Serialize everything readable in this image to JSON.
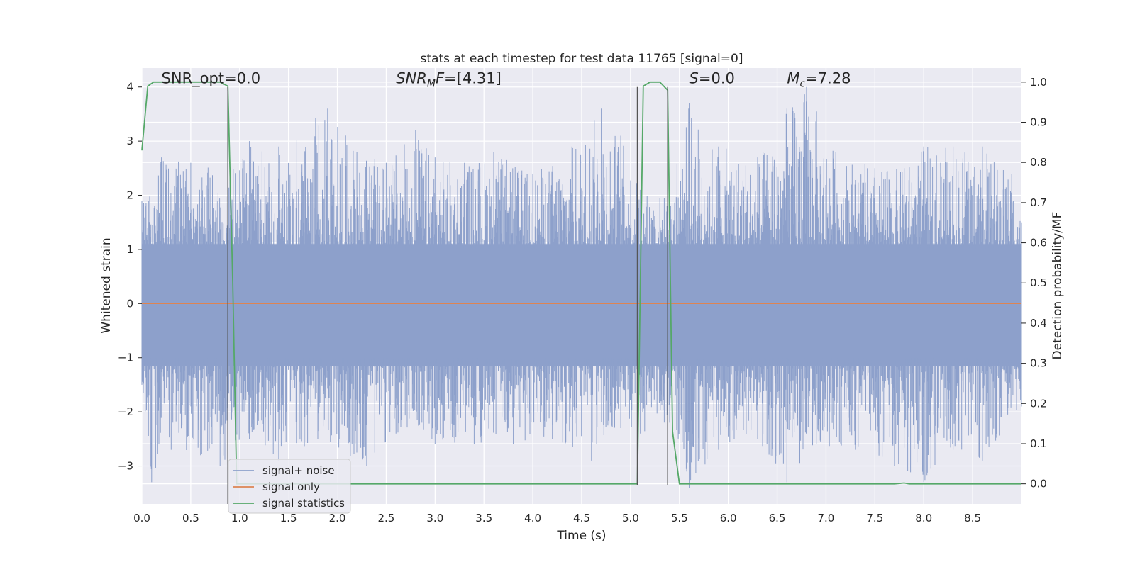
{
  "chart_data": {
    "type": "line",
    "title": "stats at each timestep for test data 11765 [signal=0]",
    "xlabel": "Time (s)",
    "ylabel_left": "Whitened strain",
    "ylabel_right": "Detection probability/MF",
    "xlim": [
      0,
      9
    ],
    "ylim_left": [
      -3.7,
      4.35
    ],
    "ylim_right": [
      -0.05,
      1.035
    ],
    "x_ticks": [
      "0.0",
      "0.5",
      "1.0",
      "1.5",
      "2.0",
      "2.5",
      "3.0",
      "3.5",
      "4.0",
      "4.5",
      "5.0",
      "5.5",
      "6.0",
      "6.5",
      "7.0",
      "7.5",
      "8.0",
      "8.5"
    ],
    "x_tick_values": [
      0,
      0.5,
      1,
      1.5,
      2,
      2.5,
      3,
      3.5,
      4,
      4.5,
      5,
      5.5,
      6,
      6.5,
      7,
      7.5,
      8,
      8.5
    ],
    "y_left_ticks": [
      "−3",
      "−2",
      "−1",
      "0",
      "1",
      "2",
      "3",
      "4"
    ],
    "y_left_tick_values": [
      -3,
      -2,
      -1,
      0,
      1,
      2,
      3,
      4
    ],
    "y_right_ticks": [
      "0.0",
      "0.1",
      "0.2",
      "0.3",
      "0.4",
      "0.5",
      "0.6",
      "0.7",
      "0.8",
      "0.9",
      "1.0"
    ],
    "y_right_tick_values": [
      0,
      0.1,
      0.2,
      0.3,
      0.4,
      0.5,
      0.6,
      0.7,
      0.8,
      0.9,
      1.0
    ],
    "grid": true,
    "legend_position": "lower-left",
    "annotations": [
      {
        "text": "SNR_opt=0.0",
        "x": 0.2,
        "y": 4.07
      },
      {
        "text": "SNR",
        "sub": "M",
        "suffix": "F=[4.31]",
        "x": 2.6,
        "y": 4.07
      },
      {
        "text": "S",
        "suffix": "=0.0",
        "x": 5.6,
        "y": 4.07
      },
      {
        "text": "M",
        "sub": "c",
        "suffix": "=7.28",
        "x": 6.6,
        "y": 4.07
      }
    ],
    "vertical_markers": [
      {
        "x": 0.88,
        "y_range": [
          -3.7,
          4.0
        ]
      },
      {
        "x": 5.07,
        "y_range": [
          -3.35,
          4.0
        ]
      },
      {
        "x": 5.38,
        "y_range": [
          -3.35,
          4.0
        ]
      }
    ],
    "series": [
      {
        "name": "signal+ noise",
        "axis": "left",
        "color": "#8da0cb",
        "kind": "noise",
        "envelope_upper": [
          [
            0.0,
            1.9
          ],
          [
            0.2,
            2.7
          ],
          [
            0.5,
            2.6
          ],
          [
            0.9,
            2.4
          ],
          [
            1.1,
            3.0
          ],
          [
            1.4,
            2.9
          ],
          [
            1.9,
            3.6
          ],
          [
            2.2,
            2.8
          ],
          [
            2.5,
            2.6
          ],
          [
            2.8,
            3.2
          ],
          [
            3.0,
            2.7
          ],
          [
            3.3,
            2.6
          ],
          [
            3.6,
            2.8
          ],
          [
            4.0,
            2.4
          ],
          [
            4.4,
            2.9
          ],
          [
            4.7,
            3.6
          ],
          [
            4.9,
            3.1
          ],
          [
            5.1,
            2.1
          ],
          [
            5.4,
            2.0
          ],
          [
            5.6,
            3.7
          ],
          [
            5.9,
            2.9
          ],
          [
            6.3,
            2.7
          ],
          [
            6.6,
            3.6
          ],
          [
            6.8,
            4.0
          ],
          [
            7.1,
            2.8
          ],
          [
            7.5,
            2.5
          ],
          [
            7.8,
            2.5
          ],
          [
            8.0,
            2.9
          ],
          [
            8.3,
            2.9
          ],
          [
            8.6,
            2.9
          ],
          [
            8.9,
            2.4
          ],
          [
            9.0,
            1.5
          ]
        ],
        "envelope_lower": [
          [
            0.0,
            -1.5
          ],
          [
            0.1,
            -3.3
          ],
          [
            0.3,
            -2.7
          ],
          [
            0.6,
            -2.8
          ],
          [
            0.8,
            -3.0
          ],
          [
            1.1,
            -2.5
          ],
          [
            1.4,
            -2.9
          ],
          [
            1.8,
            -2.5
          ],
          [
            2.3,
            -3.0
          ],
          [
            2.6,
            -2.4
          ],
          [
            3.0,
            -2.6
          ],
          [
            3.4,
            -2.6
          ],
          [
            3.8,
            -2.6
          ],
          [
            4.2,
            -2.5
          ],
          [
            4.6,
            -2.9
          ],
          [
            4.9,
            -2.3
          ],
          [
            5.1,
            -2.4
          ],
          [
            5.4,
            -2.2
          ],
          [
            5.6,
            -3.4
          ],
          [
            5.9,
            -2.7
          ],
          [
            6.3,
            -2.5
          ],
          [
            6.6,
            -3.3
          ],
          [
            6.9,
            -2.6
          ],
          [
            7.3,
            -2.7
          ],
          [
            7.7,
            -3.0
          ],
          [
            8.0,
            -3.3
          ],
          [
            8.3,
            -2.7
          ],
          [
            8.6,
            -2.9
          ],
          [
            9.0,
            -1.9
          ]
        ]
      },
      {
        "name": "signal only",
        "axis": "left",
        "color": "#dd8452",
        "x": [
          0,
          9
        ],
        "y": [
          0,
          0
        ]
      },
      {
        "name": "signal statistics",
        "axis": "right",
        "color": "#55a868",
        "x": [
          0.0,
          0.06,
          0.12,
          0.5,
          0.8,
          0.88,
          0.93,
          0.97,
          1.0,
          2.0,
          3.0,
          4.0,
          5.0,
          5.07,
          5.13,
          5.2,
          5.3,
          5.38,
          5.43,
          5.5,
          5.6,
          7.7,
          7.8,
          7.85,
          8.5,
          9.0
        ],
        "y": [
          0.83,
          0.99,
          1.0,
          1.0,
          1.0,
          0.99,
          0.5,
          0.0,
          0.0,
          0.0,
          0.0,
          0.0,
          0.0,
          0.0,
          0.99,
          1.0,
          1.0,
          0.98,
          0.13,
          0.0,
          0.0,
          0.0,
          0.002,
          0.0,
          0.0,
          0.0
        ]
      }
    ]
  }
}
